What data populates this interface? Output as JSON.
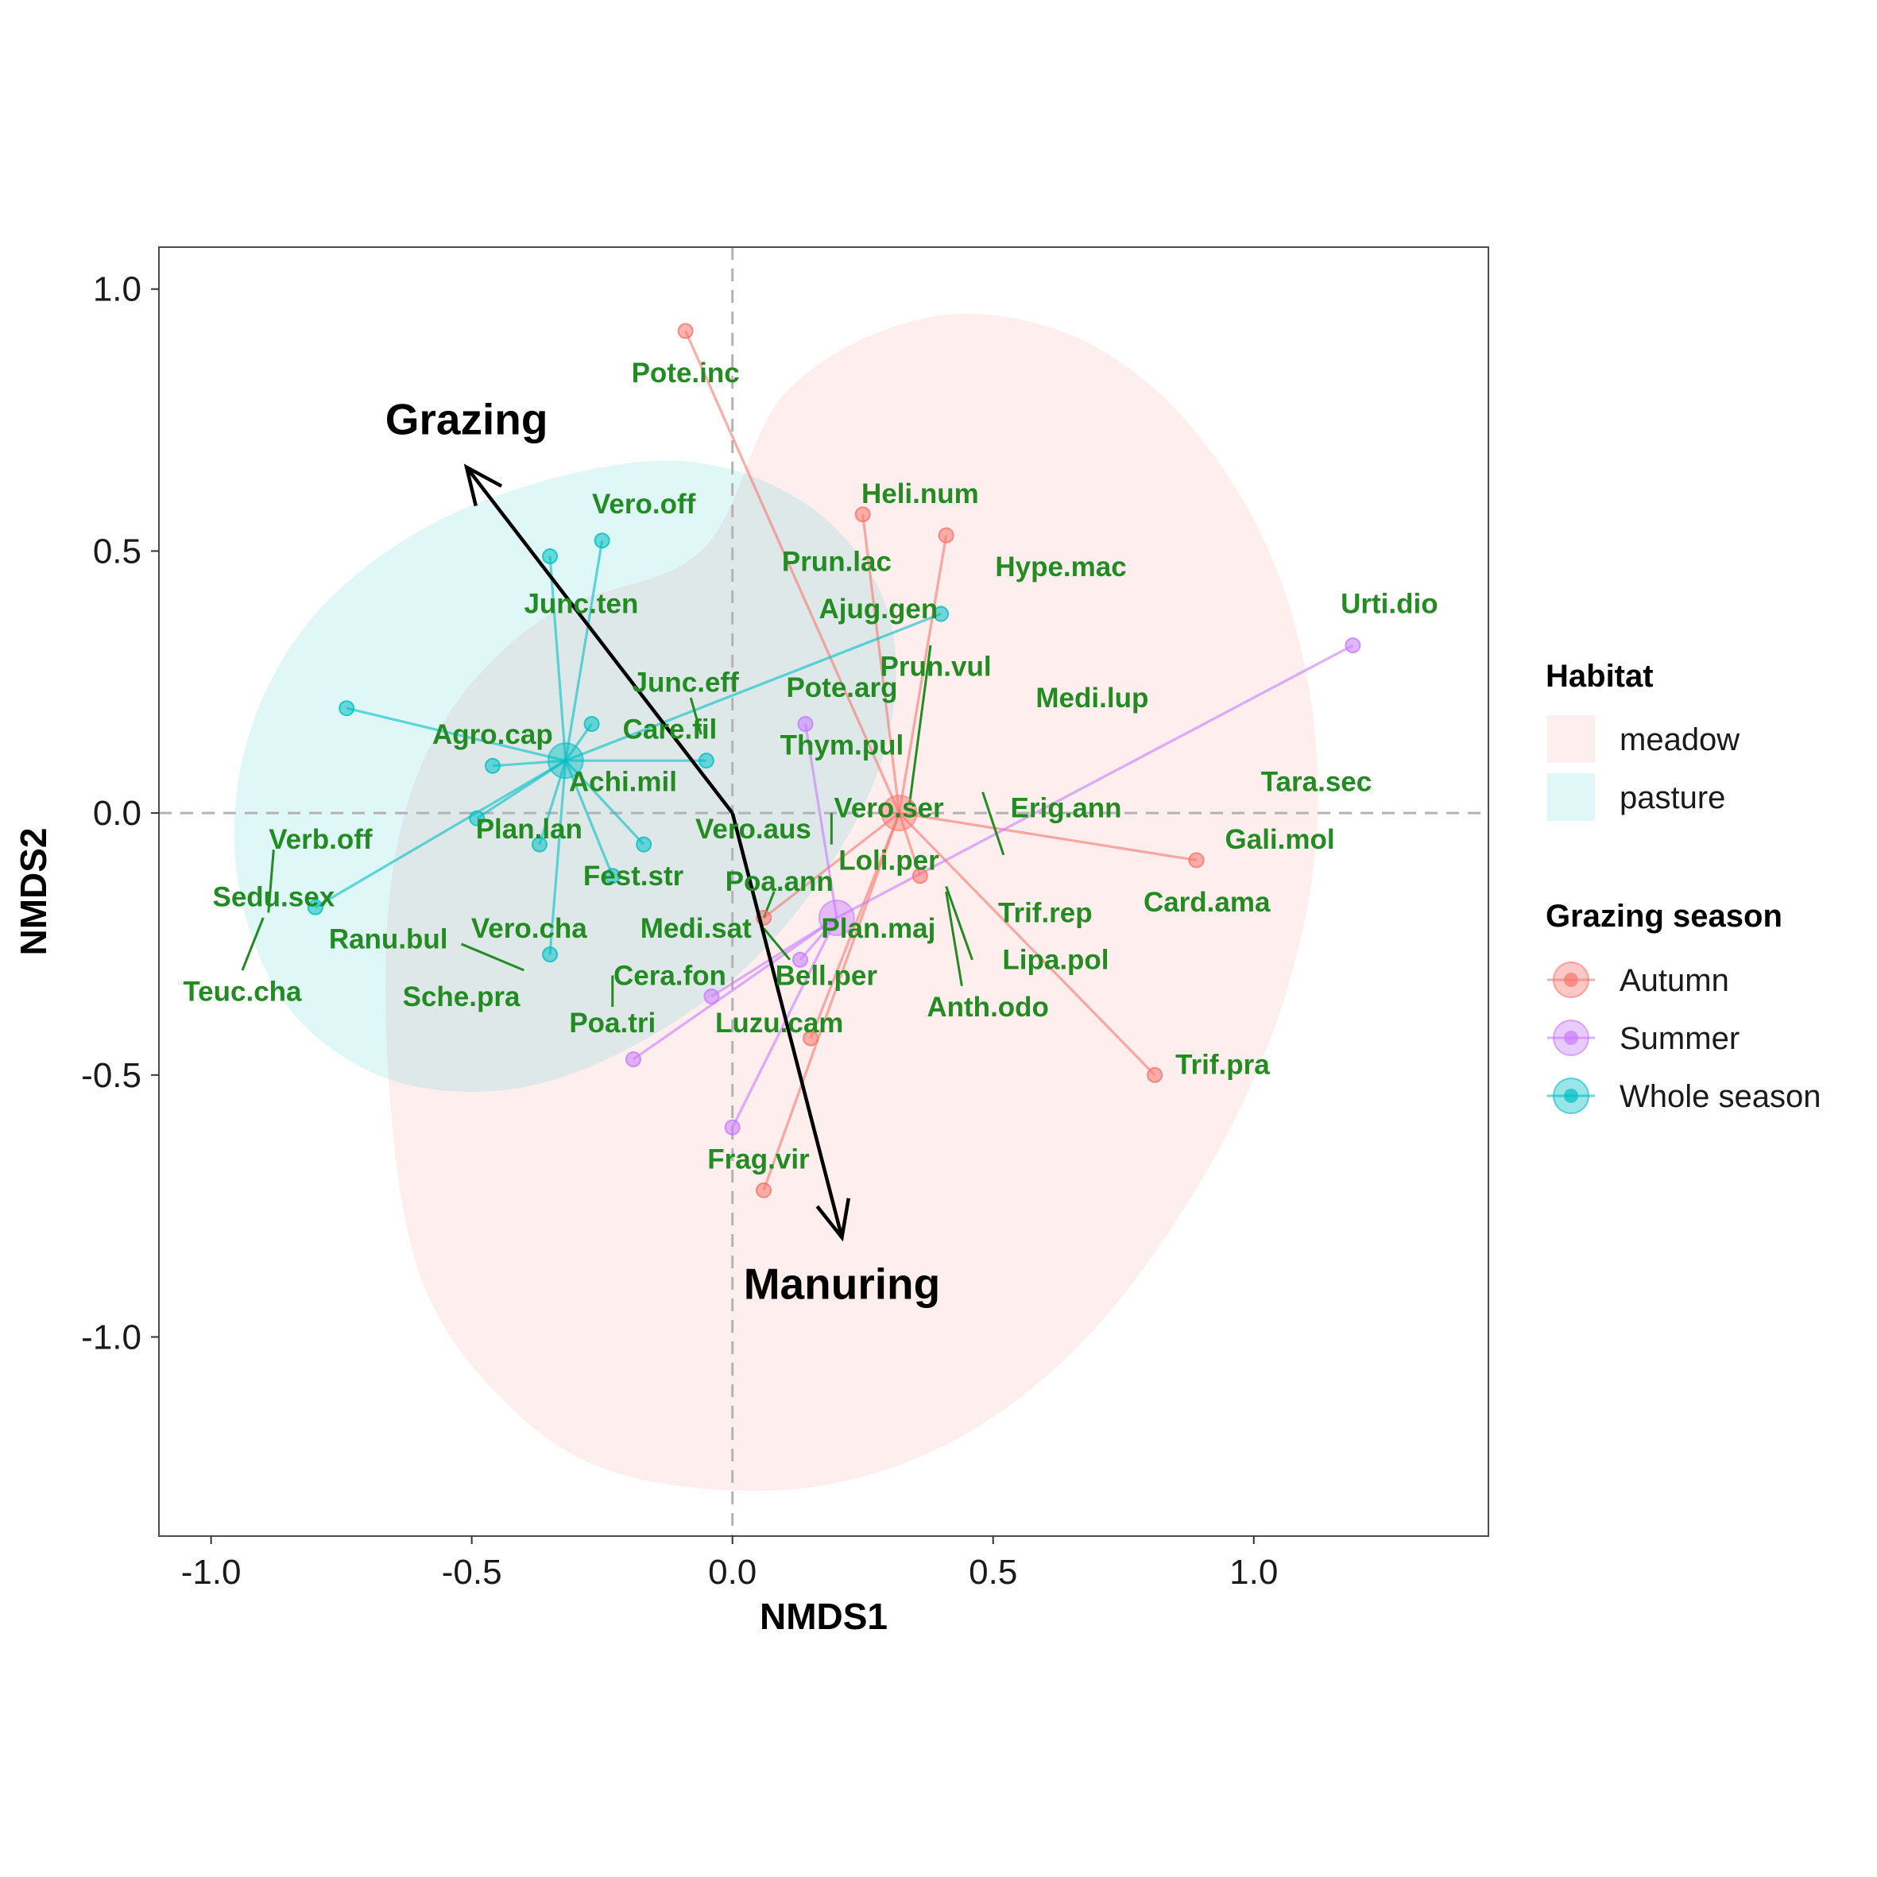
{
  "chart_data": {
    "type": "scatter",
    "xlabel": "NMDS1",
    "ylabel": "NMDS2",
    "xlim": [
      -1.1,
      1.45
    ],
    "ylim": [
      -1.38,
      1.08
    ],
    "x_ticks": [
      {
        "v": -1.0,
        "label": "-1.0"
      },
      {
        "v": -0.5,
        "label": "-0.5"
      },
      {
        "v": 0.0,
        "label": "0.0"
      },
      {
        "v": 0.5,
        "label": "0.5"
      },
      {
        "v": 1.0,
        "label": "1.0"
      }
    ],
    "y_ticks": [
      {
        "v": 1.0,
        "label": "1.0"
      },
      {
        "v": 0.5,
        "label": "0.5"
      },
      {
        "v": 0.0,
        "label": "0.0"
      },
      {
        "v": -0.5,
        "label": "-0.5"
      },
      {
        "v": -1.0,
        "label": "-1.0"
      }
    ],
    "reference_lines": {
      "x": 0,
      "y": 0,
      "style": "dashed"
    },
    "grid": false,
    "legend_position": "right",
    "habitat": {
      "title": "Habitat",
      "items": [
        {
          "name": "meadow",
          "color": "#F8766D"
        },
        {
          "name": "pasture",
          "color": "#00BFC4"
        }
      ]
    },
    "grazing_season": {
      "title": "Grazing season",
      "groups": [
        {
          "name": "Autumn",
          "color": "#F8766D",
          "centroid": [
            0.32,
            0.0
          ],
          "points": [
            [
              -0.09,
              0.92
            ],
            [
              0.25,
              0.57
            ],
            [
              0.41,
              0.53
            ],
            [
              0.89,
              -0.09
            ],
            [
              0.36,
              -0.12
            ],
            [
              0.81,
              -0.5
            ],
            [
              0.15,
              -0.43
            ],
            [
              0.06,
              -0.72
            ],
            [
              0.06,
              -0.2
            ]
          ]
        },
        {
          "name": "Summer",
          "color": "#C77CFF",
          "centroid": [
            0.2,
            -0.2
          ],
          "points": [
            [
              1.19,
              0.32
            ],
            [
              0.14,
              0.17
            ],
            [
              0.13,
              -0.28
            ],
            [
              -0.04,
              -0.35
            ],
            [
              -0.19,
              -0.47
            ],
            [
              0.0,
              -0.6
            ]
          ]
        },
        {
          "name": "Whole season",
          "color": "#00BFC4",
          "centroid": [
            -0.32,
            0.1
          ],
          "points": [
            [
              -0.35,
              0.49
            ],
            [
              -0.25,
              0.52
            ],
            [
              -0.74,
              0.2
            ],
            [
              -0.27,
              0.17
            ],
            [
              -0.05,
              0.1
            ],
            [
              -0.46,
              0.09
            ],
            [
              -0.49,
              -0.01
            ],
            [
              -0.37,
              -0.06
            ],
            [
              -0.17,
              -0.06
            ],
            [
              -0.23,
              -0.12
            ],
            [
              -0.35,
              -0.27
            ],
            [
              -0.8,
              -0.18
            ],
            [
              0.4,
              0.38
            ]
          ]
        }
      ]
    },
    "hulls": [
      {
        "name": "meadow",
        "color": "#F8766D",
        "outline": [
          [
            -0.06,
            0.5
          ],
          [
            0.1,
            0.8
          ],
          [
            0.35,
            0.94
          ],
          [
            0.6,
            0.93
          ],
          [
            0.82,
            0.8
          ],
          [
            1.0,
            0.56
          ],
          [
            1.1,
            0.27
          ],
          [
            1.12,
            -0.05
          ],
          [
            1.05,
            -0.38
          ],
          [
            0.9,
            -0.7
          ],
          [
            0.68,
            -1.0
          ],
          [
            0.42,
            -1.2
          ],
          [
            0.12,
            -1.29
          ],
          [
            -0.22,
            -1.26
          ],
          [
            -0.44,
            -1.12
          ],
          [
            -0.6,
            -0.88
          ],
          [
            -0.66,
            -0.5
          ],
          [
            -0.65,
            -0.1
          ],
          [
            -0.55,
            0.18
          ],
          [
            -0.35,
            0.38
          ]
        ]
      },
      {
        "name": "pasture",
        "color": "#00BFC4",
        "outline": [
          [
            -0.25,
            0.66
          ],
          [
            -0.02,
            0.66
          ],
          [
            0.18,
            0.56
          ],
          [
            0.3,
            0.38
          ],
          [
            0.3,
            0.15
          ],
          [
            0.2,
            -0.08
          ],
          [
            0.02,
            -0.3
          ],
          [
            -0.22,
            -0.46
          ],
          [
            -0.45,
            -0.53
          ],
          [
            -0.68,
            -0.5
          ],
          [
            -0.86,
            -0.36
          ],
          [
            -0.95,
            -0.12
          ],
          [
            -0.93,
            0.14
          ],
          [
            -0.8,
            0.38
          ],
          [
            -0.56,
            0.56
          ]
        ]
      }
    ],
    "vectors": [
      {
        "name": "Grazing",
        "x": -0.51,
        "y": 0.66,
        "label_x": -0.51,
        "label_y": 0.75
      },
      {
        "name": "Manuring",
        "x": 0.21,
        "y": -0.81,
        "label_x": 0.21,
        "label_y": -0.9
      }
    ],
    "species": [
      {
        "name": "Pote.inc",
        "x": -0.09,
        "y": 0.84
      },
      {
        "name": "Heli.num",
        "x": 0.36,
        "y": 0.61
      },
      {
        "name": "Vero.off",
        "x": -0.17,
        "y": 0.59
      },
      {
        "name": "Prun.lac",
        "x": 0.2,
        "y": 0.48
      },
      {
        "name": "Hype.mac",
        "x": 0.63,
        "y": 0.47
      },
      {
        "name": "Urti.dio",
        "x": 1.26,
        "y": 0.4
      },
      {
        "name": "Junc.ten",
        "x": -0.29,
        "y": 0.4
      },
      {
        "name": "Ajug.gen",
        "x": 0.28,
        "y": 0.39
      },
      {
        "name": "Prun.vul",
        "x": 0.39,
        "y": 0.28
      },
      {
        "name": "Junc.eff",
        "x": -0.09,
        "y": 0.25
      },
      {
        "name": "Pote.arg",
        "x": 0.21,
        "y": 0.24
      },
      {
        "name": "Medi.lup",
        "x": 0.69,
        "y": 0.22
      },
      {
        "name": "Agro.cap",
        "x": -0.46,
        "y": 0.15
      },
      {
        "name": "Care.fil",
        "x": -0.12,
        "y": 0.16
      },
      {
        "name": "Thym.pul",
        "x": 0.21,
        "y": 0.13
      },
      {
        "name": "Tara.sec",
        "x": 1.12,
        "y": 0.06
      },
      {
        "name": "Achi.mil",
        "x": -0.21,
        "y": 0.06
      },
      {
        "name": "Vero.ser",
        "x": 0.3,
        "y": 0.01
      },
      {
        "name": "Erig.ann",
        "x": 0.64,
        "y": 0.01
      },
      {
        "name": "Vero.aus",
        "x": 0.04,
        "y": -0.03
      },
      {
        "name": "Plan.lan",
        "x": -0.39,
        "y": -0.03
      },
      {
        "name": "Gali.mol",
        "x": 1.05,
        "y": -0.05
      },
      {
        "name": "Verb.off",
        "x": -0.79,
        "y": -0.05
      },
      {
        "name": "Loli.per",
        "x": 0.3,
        "y": -0.09
      },
      {
        "name": "Fest.str",
        "x": -0.19,
        "y": -0.12
      },
      {
        "name": "Poa.ann",
        "x": 0.09,
        "y": -0.13
      },
      {
        "name": "Sedu.sex",
        "x": -0.88,
        "y": -0.16
      },
      {
        "name": "Card.ama",
        "x": 0.91,
        "y": -0.17
      },
      {
        "name": "Trif.rep",
        "x": 0.6,
        "y": -0.19
      },
      {
        "name": "Medi.sat",
        "x": -0.07,
        "y": -0.22
      },
      {
        "name": "Plan.maj",
        "x": 0.28,
        "y": -0.22
      },
      {
        "name": "Vero.cha",
        "x": -0.39,
        "y": -0.22
      },
      {
        "name": "Ranu.bul",
        "x": -0.66,
        "y": -0.24
      },
      {
        "name": "Lipa.pol",
        "x": 0.62,
        "y": -0.28
      },
      {
        "name": "Bell.per",
        "x": 0.18,
        "y": -0.31
      },
      {
        "name": "Cera.fon",
        "x": -0.12,
        "y": -0.31
      },
      {
        "name": "Teuc.cha",
        "x": -0.94,
        "y": -0.34
      },
      {
        "name": "Sche.pra",
        "x": -0.52,
        "y": -0.35
      },
      {
        "name": "Anth.odo",
        "x": 0.49,
        "y": -0.37
      },
      {
        "name": "Poa.tri",
        "x": -0.23,
        "y": -0.4
      },
      {
        "name": "Luzu.cam",
        "x": 0.09,
        "y": -0.4
      },
      {
        "name": "Trif.pra",
        "x": 0.94,
        "y": -0.48
      },
      {
        "name": "Frag.vir",
        "x": 0.05,
        "y": -0.66
      }
    ],
    "label_leaders": [
      [
        [
          0.52,
          -0.08
        ],
        [
          0.48,
          0.04
        ]
      ],
      [
        [
          0.46,
          -0.28
        ],
        [
          0.41,
          -0.14
        ]
      ],
      [
        [
          0.44,
          -0.33
        ],
        [
          0.41,
          -0.15
        ]
      ],
      [
        [
          0.38,
          0.32
        ],
        [
          0.34,
          0.02
        ]
      ],
      [
        [
          0.19,
          0.0
        ],
        [
          0.19,
          -0.06
        ]
      ],
      [
        [
          0.08,
          -0.15
        ],
        [
          0.06,
          -0.2
        ]
      ],
      [
        [
          0.06,
          -0.22
        ],
        [
          0.11,
          -0.28
        ]
      ],
      [
        [
          -0.52,
          -0.25
        ],
        [
          -0.4,
          -0.3
        ]
      ],
      [
        [
          -0.23,
          -0.31
        ],
        [
          -0.23,
          -0.37
        ]
      ],
      [
        [
          -0.88,
          -0.07
        ],
        [
          -0.89,
          -0.19
        ]
      ],
      [
        [
          -0.9,
          -0.2
        ],
        [
          -0.94,
          -0.3
        ]
      ],
      [
        [
          -0.08,
          0.22
        ],
        [
          -0.06,
          0.15
        ]
      ]
    ]
  }
}
